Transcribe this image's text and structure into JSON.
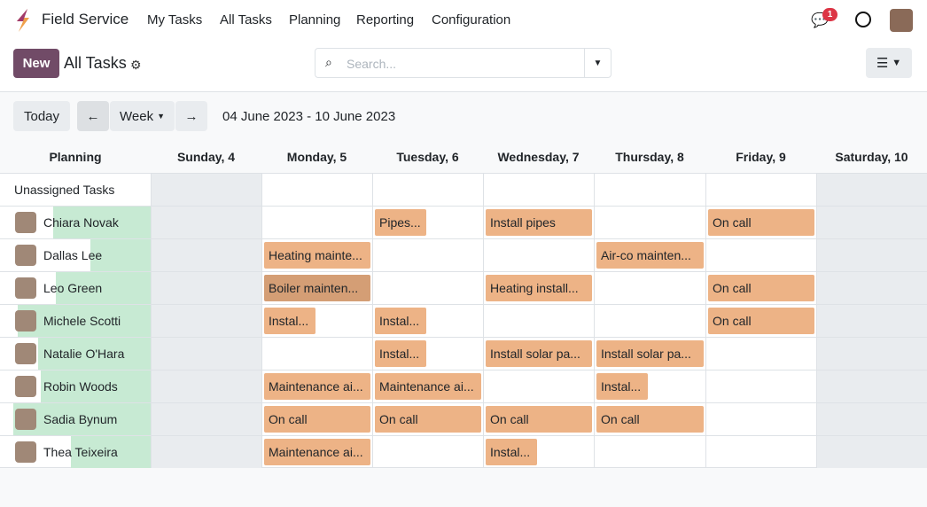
{
  "topbar": {
    "app_name": "Field Service",
    "menu": [
      "My Tasks",
      "All Tasks",
      "Planning",
      "Reporting",
      "Configuration"
    ],
    "message_count": "1"
  },
  "control": {
    "new_label": "New",
    "title": "All Tasks",
    "search_placeholder": "Search..."
  },
  "nav": {
    "today": "Today",
    "scale": "Week",
    "range": "04 June 2023 - 10 June 2023"
  },
  "columns": {
    "header": "Planning",
    "days": [
      "Sunday, 4",
      "Monday, 5",
      "Tuesday, 6",
      "Wednesday, 7",
      "Thursday, 8",
      "Friday, 9",
      "Saturday, 10"
    ],
    "weekend": [
      0,
      6
    ]
  },
  "colors": {
    "brand": "#714b67",
    "task": "#edb386",
    "workload": "#c7ead3",
    "weekend": "#e9ecef",
    "badge": "#dc3545"
  },
  "rows": [
    {
      "name": "Unassigned Tasks",
      "tasks": []
    },
    {
      "name": "Chiara Novak",
      "workload": 0.65,
      "tasks": [
        {
          "day": 2,
          "text": "Pipes...",
          "half": true
        },
        {
          "day": 3,
          "text": "Install pipes"
        },
        {
          "day": 5,
          "text": "On call"
        }
      ]
    },
    {
      "name": "Dallas Lee",
      "workload": 0.4,
      "tasks": [
        {
          "day": 1,
          "text": "Heating mainte..."
        },
        {
          "day": 4,
          "text": "Air-co mainten..."
        }
      ]
    },
    {
      "name": "Leo Green",
      "workload": 0.63,
      "tasks": [
        {
          "day": 1,
          "text": "Boiler mainten...",
          "highlighted": true
        },
        {
          "day": 3,
          "text": "Heating install..."
        },
        {
          "day": 5,
          "text": "On call"
        }
      ]
    },
    {
      "name": "Michele Scotti",
      "workload": 0.88,
      "tasks": [
        {
          "day": 1,
          "text": "Instal...",
          "half": true
        },
        {
          "day": 2,
          "text": "Instal...",
          "half": true
        },
        {
          "day": 5,
          "text": "On call"
        }
      ]
    },
    {
      "name": "Natalie O'Hara",
      "workload": 0.75,
      "tasks": [
        {
          "day": 2,
          "text": "Instal...",
          "half": true
        },
        {
          "day": 3,
          "text": "Install solar pa..."
        },
        {
          "day": 4,
          "text": "Install solar pa..."
        }
      ]
    },
    {
      "name": "Robin Woods",
      "workload": 0.73,
      "tasks": [
        {
          "day": 1,
          "text": "Maintenance ai..."
        },
        {
          "day": 2,
          "text": "Maintenance ai..."
        },
        {
          "day": 4,
          "text": "Instal...",
          "half": true
        }
      ]
    },
    {
      "name": "Sadia Bynum",
      "workload": 0.91,
      "tasks": [
        {
          "day": 1,
          "text": "On call"
        },
        {
          "day": 2,
          "text": "On call"
        },
        {
          "day": 3,
          "text": "On call"
        },
        {
          "day": 4,
          "text": "On call"
        }
      ]
    },
    {
      "name": "Thea Teixeira",
      "workload": 0.53,
      "tasks": [
        {
          "day": 1,
          "text": "Maintenance ai..."
        },
        {
          "day": 3,
          "text": "Instal...",
          "half": true
        }
      ]
    }
  ]
}
